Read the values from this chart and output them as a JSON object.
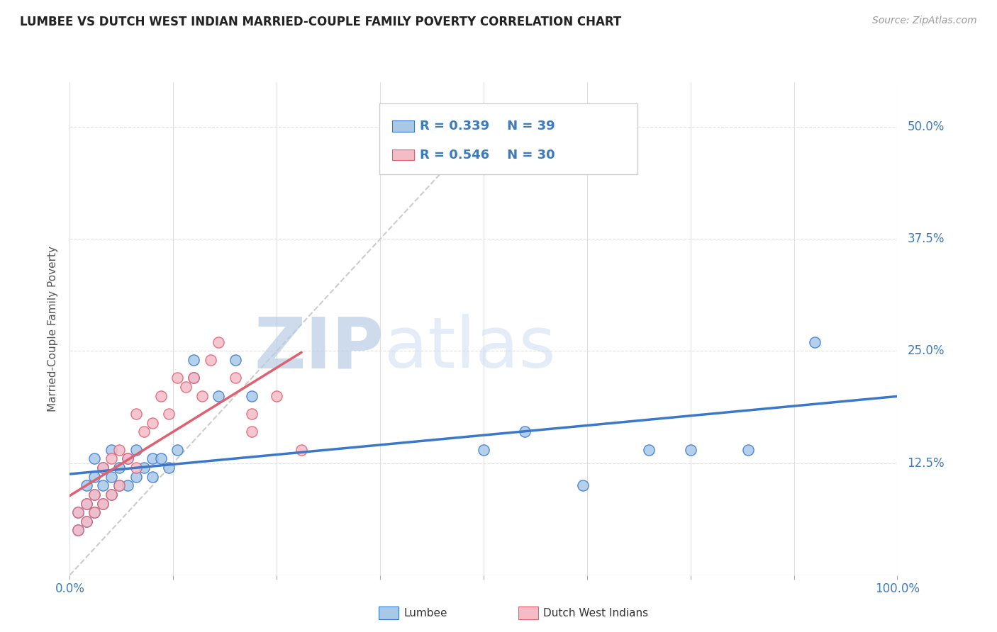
{
  "title": "LUMBEE VS DUTCH WEST INDIAN MARRIED-COUPLE FAMILY POVERTY CORRELATION CHART",
  "source": "Source: ZipAtlas.com",
  "ylabel": "Married-Couple Family Poverty",
  "xlim": [
    0,
    100
  ],
  "ylim": [
    0,
    55
  ],
  "xticks": [
    0,
    12.5,
    25.0,
    37.5,
    50.0,
    62.5,
    75.0,
    87.5,
    100
  ],
  "xticklabels": [
    "0.0%",
    "",
    "",
    "",
    "",
    "",
    "",
    "",
    "100.0%"
  ],
  "ytick_positions": [
    12.5,
    25.0,
    37.5,
    50.0
  ],
  "ytick_labels": [
    "12.5%",
    "25.0%",
    "37.5%",
    "50.0%"
  ],
  "lumbee_R": 0.339,
  "lumbee_N": 39,
  "dutch_R": 0.546,
  "dutch_N": 30,
  "lumbee_color": "#a8c8e8",
  "dutch_color": "#f5bcc8",
  "lumbee_line_color": "#3a78c9",
  "dutch_line_color": "#e06070",
  "diagonal_color": "#cccccc",
  "background_color": "#ffffff",
  "grid_color": "#e0e0e0",
  "watermark_zip": "ZIP",
  "watermark_atlas": "atlas",
  "lumbee_scatter_x": [
    1,
    1,
    2,
    2,
    2,
    3,
    3,
    3,
    3,
    4,
    4,
    4,
    5,
    5,
    5,
    6,
    6,
    7,
    7,
    8,
    8,
    9,
    10,
    10,
    11,
    12,
    13,
    15,
    18,
    20,
    22,
    50,
    55,
    62,
    70,
    75,
    82,
    90,
    15
  ],
  "lumbee_scatter_y": [
    5,
    7,
    6,
    8,
    10,
    7,
    9,
    11,
    13,
    8,
    10,
    12,
    9,
    11,
    14,
    10,
    12,
    10,
    13,
    11,
    14,
    12,
    11,
    13,
    13,
    12,
    14,
    22,
    20,
    24,
    20,
    14,
    16,
    10,
    14,
    14,
    14,
    26,
    24
  ],
  "dutch_scatter_x": [
    1,
    1,
    2,
    2,
    3,
    3,
    4,
    4,
    5,
    5,
    6,
    6,
    7,
    8,
    8,
    9,
    10,
    11,
    12,
    13,
    14,
    15,
    16,
    17,
    18,
    20,
    22,
    22,
    25,
    28
  ],
  "dutch_scatter_y": [
    5,
    7,
    6,
    8,
    7,
    9,
    8,
    12,
    9,
    13,
    10,
    14,
    13,
    12,
    18,
    16,
    17,
    20,
    18,
    22,
    21,
    22,
    20,
    24,
    26,
    22,
    18,
    16,
    20,
    14
  ]
}
